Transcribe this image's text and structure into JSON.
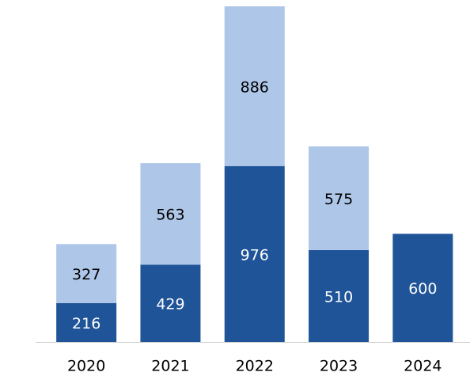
{
  "chart_data": {
    "type": "stacked_bar",
    "categories": [
      "2020",
      "2021",
      "2022",
      "2023",
      "2024"
    ],
    "series": [
      {
        "color": "#1f5499",
        "label_color": "#ffffff",
        "values": [
          216,
          429,
          976,
          510,
          600
        ]
      },
      {
        "color": "#aec6e8",
        "label_color": "#000000",
        "values": [
          327,
          563,
          886,
          575,
          null
        ]
      }
    ]
  }
}
